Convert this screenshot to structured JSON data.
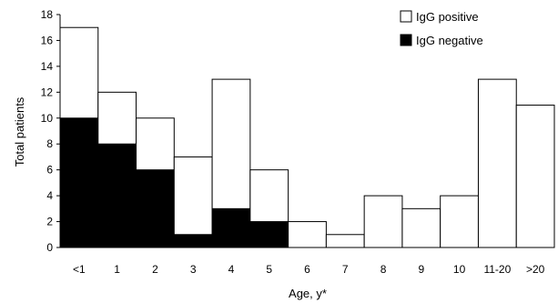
{
  "chart_data": {
    "type": "bar",
    "stacked": true,
    "title": "",
    "xlabel": "Age, y*",
    "ylabel": "Total patients",
    "ylim": [
      0,
      18
    ],
    "yticks": [
      0,
      2,
      4,
      6,
      8,
      10,
      12,
      14,
      16,
      18
    ],
    "categories": [
      "<1",
      "1",
      "2",
      "3",
      "4",
      "5",
      "6",
      "7",
      "8",
      "9",
      "10",
      "11-20",
      ">20"
    ],
    "series": [
      {
        "name": "IgG negative",
        "color": "#000000",
        "values": [
          10,
          8,
          6,
          1,
          3,
          2,
          0,
          0,
          0,
          0,
          0,
          0,
          0
        ]
      },
      {
        "name": "IgG positive",
        "color": "#ffffff",
        "values": [
          7,
          4,
          4,
          6,
          10,
          4,
          2,
          1,
          4,
          3,
          4,
          13,
          11
        ]
      }
    ],
    "totals": [
      17,
      12,
      10,
      7,
      13,
      6,
      2,
      1,
      4,
      3,
      4,
      13,
      11
    ],
    "legend": {
      "position": "top-right",
      "entries": [
        "IgG positive",
        "IgG negative"
      ]
    },
    "grid": false
  }
}
